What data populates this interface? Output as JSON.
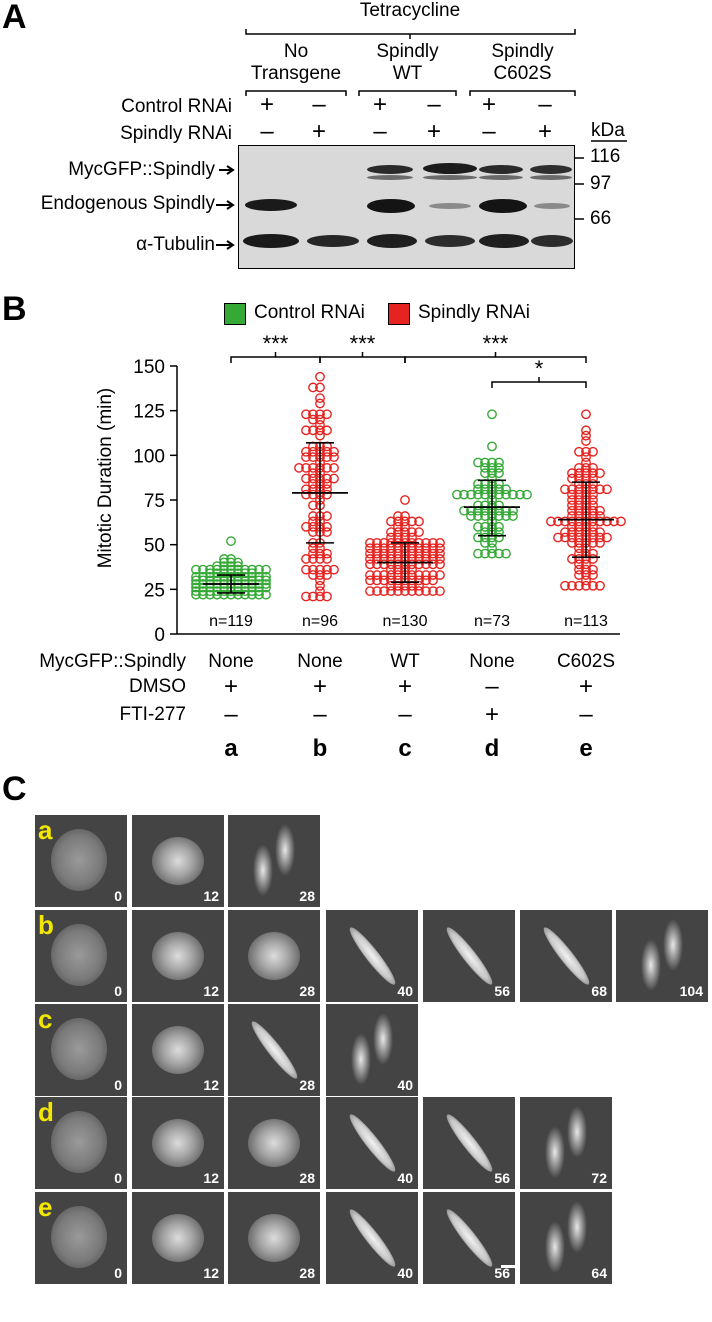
{
  "panelA": {
    "letter": "A",
    "tet_label": "Tetracycline",
    "groups": [
      "No\nTransgene",
      "Spindly\nWT",
      "Spindly\nC602S"
    ],
    "row_labels": {
      "control": "Control RNAi",
      "spindly": "Spindly RNAi"
    },
    "signs": {
      "control": [
        "+",
        "–",
        "+",
        "–",
        "+",
        "–"
      ],
      "spindly": [
        "–",
        "+",
        "–",
        "+",
        "–",
        "+"
      ]
    },
    "kda_label": "kDa",
    "markers": [
      "116",
      "97",
      "66"
    ],
    "bands": [
      "MycGFP::Spindly",
      "Endogenous Spindly",
      "α-Tubulin"
    ]
  },
  "panelB": {
    "letter": "B",
    "legend": [
      {
        "label": "Control RNAi",
        "color": "#35a936"
      },
      {
        "label": "Spindly RNAi",
        "color": "#e52421"
      }
    ],
    "condition_rows": [
      {
        "label": "MycGFP::Spindly",
        "values": [
          "None",
          "None",
          "WT",
          "None",
          "C602S"
        ]
      },
      {
        "label": "DMSO",
        "values": [
          "+",
          "+",
          "+",
          "–",
          "+"
        ]
      },
      {
        "label": "FTI-277",
        "values": [
          "–",
          "–",
          "–",
          "+",
          "–"
        ]
      }
    ],
    "letters": [
      "a",
      "b",
      "c",
      "d",
      "e"
    ],
    "significance": [
      {
        "from": 0,
        "to": 1,
        "label": "***"
      },
      {
        "from": 1,
        "to": 2,
        "label": "***"
      },
      {
        "from": 2,
        "to": 4,
        "label": "***"
      },
      {
        "from": 3,
        "to": 4,
        "label": "*"
      }
    ]
  },
  "chart_data": {
    "type": "scatter",
    "title": "",
    "xlabel": "",
    "ylabel": "Mitotic Duration (min)",
    "ylim": [
      0,
      150
    ],
    "yticks": [
      0,
      25,
      50,
      75,
      100,
      125,
      150
    ],
    "categories": [
      "a",
      "b",
      "c",
      "d",
      "e"
    ],
    "series": [
      {
        "group": "a",
        "color": "#35a936",
        "n_label": "n=119",
        "mean": 28,
        "sd_low": 23,
        "sd_high": 33,
        "min": 22,
        "max": 52
      },
      {
        "group": "b",
        "color": "#e52421",
        "n_label": "n=96",
        "mean": 79,
        "sd_low": 51,
        "sd_high": 107,
        "min": 20,
        "max": 144
      },
      {
        "group": "c",
        "color": "#e52421",
        "n_label": "n=130",
        "mean": 40,
        "sd_low": 29,
        "sd_high": 51,
        "min": 24,
        "max": 76
      },
      {
        "group": "d",
        "color": "#35a936",
        "n_label": "n=73",
        "mean": 71,
        "sd_low": 55,
        "sd_high": 86,
        "min": 44,
        "max": 124
      },
      {
        "group": "e",
        "color": "#e52421",
        "n_label": "n=113",
        "mean": 64,
        "sd_low": 43,
        "sd_high": 85,
        "min": 28,
        "max": 124
      }
    ]
  },
  "panelC": {
    "letter": "C",
    "rows": [
      {
        "letter": "a",
        "times": [
          "0",
          "12",
          "28"
        ]
      },
      {
        "letter": "b",
        "times": [
          "0",
          "12",
          "28",
          "40",
          "56",
          "68",
          "104"
        ]
      },
      {
        "letter": "c",
        "times": [
          "0",
          "12",
          "28",
          "40"
        ]
      },
      {
        "letter": "d",
        "times": [
          "0",
          "12",
          "28",
          "40",
          "56",
          "72"
        ]
      },
      {
        "letter": "e",
        "times": [
          "0",
          "12",
          "28",
          "40",
          "56",
          "64"
        ]
      }
    ]
  }
}
